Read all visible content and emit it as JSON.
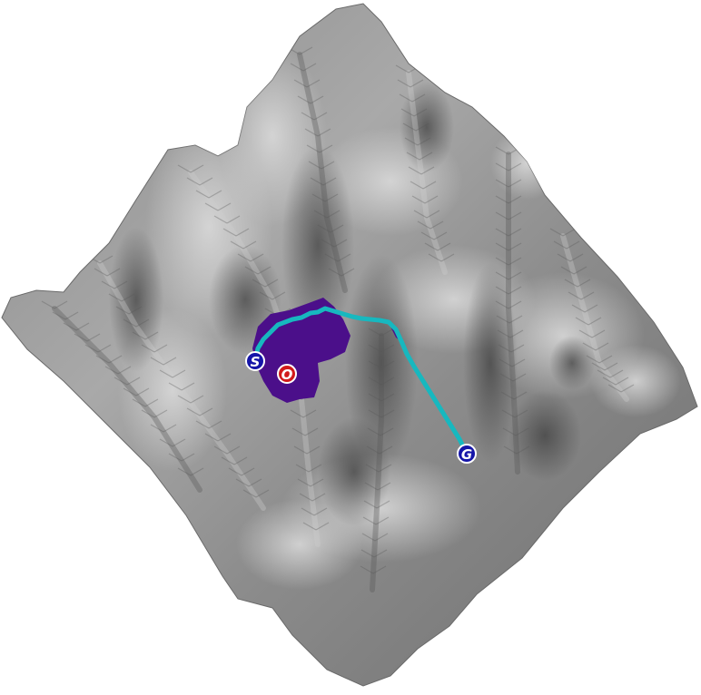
{
  "colors": {
    "background": "#ffffff",
    "terrain_light": "#d4d4d4",
    "terrain_mid": "#9e9e9e",
    "terrain_dark": "#4a4a4a",
    "explored_region": "#4b0f8a",
    "path": "#17b8bf",
    "start_marker_fill": "#1515a8",
    "goal_marker_fill": "#1515a8",
    "origin_marker_fill": "#d11a1a",
    "marker_ring": "#ffffff"
  },
  "markers": {
    "start": {
      "label": "S"
    },
    "origin": {
      "label": "O"
    },
    "goal": {
      "label": "G"
    }
  }
}
